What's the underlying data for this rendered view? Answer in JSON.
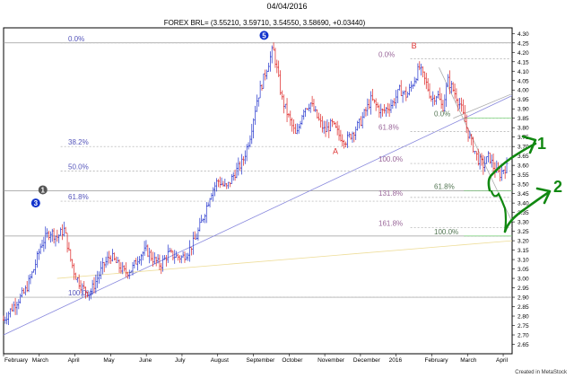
{
  "header": {
    "date": "04/04/2016",
    "ohlc": "FOREX BRL= (3.55210, 3.59710, 3.54550, 3.58690, +0.03440)"
  },
  "credit": "Created in MetaStock",
  "chart_data": {
    "type": "ohlc",
    "title": "FOREX BRL= (3.55210, 3.59710, 3.54550, 3.58690, +0.03440)",
    "ylim": [
      2.6,
      4.33
    ],
    "y_ticks": [
      "4.30",
      "4.25",
      "4.20",
      "4.15",
      "4.10",
      "4.05",
      "4.00",
      "3.95",
      "3.90",
      "3.85",
      "3.80",
      "3.75",
      "3.70",
      "3.65",
      "3.60",
      "3.55",
      "3.50",
      "3.45",
      "3.40",
      "3.35",
      "3.30",
      "3.25",
      "3.20",
      "3.15",
      "3.10",
      "3.05",
      "3.00",
      "2.95",
      "2.90",
      "2.85",
      "2.80",
      "2.75",
      "2.70",
      "2.65"
    ],
    "months": [
      {
        "label": "February",
        "t": 0
      },
      {
        "label": "March",
        "t": 1
      },
      {
        "label": "April",
        "t": 2
      },
      {
        "label": "May",
        "t": 3
      },
      {
        "label": "June",
        "t": 4
      },
      {
        "label": "July",
        "t": 5
      },
      {
        "label": "August",
        "t": 6
      },
      {
        "label": "September",
        "t": 7
      },
      {
        "label": "October",
        "t": 8
      },
      {
        "label": "November",
        "t": 9
      },
      {
        "label": "December",
        "t": 10
      },
      {
        "label": "2016",
        "t": 11
      },
      {
        "label": "February",
        "t": 12
      },
      {
        "label": "March",
        "t": 13
      },
      {
        "label": "April",
        "t": 14
      }
    ],
    "t_range": [
      0,
      14.25
    ],
    "price_path": [
      [
        0.0,
        2.78
      ],
      [
        0.3,
        2.86
      ],
      [
        0.6,
        2.93
      ],
      [
        0.85,
        3.05
      ],
      [
        1.05,
        3.18
      ],
      [
        1.3,
        3.25
      ],
      [
        1.5,
        3.22
      ],
      [
        1.7,
        3.26
      ],
      [
        1.85,
        3.12
      ],
      [
        2.0,
        3.02
      ],
      [
        2.2,
        2.95
      ],
      [
        2.4,
        2.92
      ],
      [
        2.55,
        2.97
      ],
      [
        2.8,
        3.07
      ],
      [
        3.0,
        3.12
      ],
      [
        3.2,
        3.07
      ],
      [
        3.4,
        3.03
      ],
      [
        3.6,
        3.05
      ],
      [
        3.8,
        3.12
      ],
      [
        4.0,
        3.15
      ],
      [
        4.2,
        3.1
      ],
      [
        4.4,
        3.07
      ],
      [
        4.6,
        3.13
      ],
      [
        4.8,
        3.12
      ],
      [
        5.0,
        3.11
      ],
      [
        5.2,
        3.15
      ],
      [
        5.4,
        3.22
      ],
      [
        5.6,
        3.33
      ],
      [
        5.8,
        3.45
      ],
      [
        6.0,
        3.52
      ],
      [
        6.25,
        3.48
      ],
      [
        6.45,
        3.55
      ],
      [
        6.7,
        3.62
      ],
      [
        6.9,
        3.75
      ],
      [
        7.1,
        3.95
      ],
      [
        7.35,
        4.1
      ],
      [
        7.55,
        4.22
      ],
      [
        7.65,
        4.12
      ],
      [
        7.8,
        3.95
      ],
      [
        8.0,
        3.85
      ],
      [
        8.2,
        3.75
      ],
      [
        8.4,
        3.9
      ],
      [
        8.6,
        3.93
      ],
      [
        8.8,
        3.85
      ],
      [
        9.0,
        3.78
      ],
      [
        9.2,
        3.82
      ],
      [
        9.4,
        3.76
      ],
      [
        9.6,
        3.73
      ],
      [
        9.8,
        3.78
      ],
      [
        10.0,
        3.83
      ],
      [
        10.3,
        3.95
      ],
      [
        10.6,
        3.88
      ],
      [
        10.9,
        3.93
      ],
      [
        11.1,
        4.0
      ],
      [
        11.3,
        3.97
      ],
      [
        11.5,
        4.05
      ],
      [
        11.65,
        4.12
      ],
      [
        11.85,
        4.03
      ],
      [
        12.0,
        3.95
      ],
      [
        12.15,
        3.98
      ],
      [
        12.3,
        3.9
      ],
      [
        12.45,
        4.05
      ],
      [
        12.6,
        4.0
      ],
      [
        12.8,
        3.92
      ],
      [
        12.9,
        3.85
      ],
      [
        13.0,
        3.78
      ],
      [
        13.15,
        3.7
      ],
      [
        13.3,
        3.63
      ],
      [
        13.45,
        3.6
      ],
      [
        13.6,
        3.65
      ],
      [
        13.75,
        3.58
      ],
      [
        13.9,
        3.55
      ],
      [
        14.0,
        3.58
      ],
      [
        14.1,
        3.59
      ]
    ],
    "trendlines": [
      {
        "from": [
          0.0,
          2.7
        ],
        "to": [
          14.25,
          3.97
        ],
        "color": "#8888dd"
      },
      {
        "from": [
          12.2,
          4.12
        ],
        "to": [
          14.25,
          3.3
        ],
        "color": "#aaaaaa"
      },
      {
        "from": [
          12.6,
          3.85
        ],
        "to": [
          14.25,
          3.98
        ],
        "color": "#aaaaaa"
      },
      {
        "from": [
          1.5,
          3.0
        ],
        "to": [
          14.25,
          3.2
        ],
        "color": "#eedd99"
      }
    ],
    "fib_long": [
      {
        "label": "0.0%",
        "price": 4.25,
        "color": "#5555bb"
      },
      {
        "label": "38.2%",
        "price": 3.7,
        "color": "#5555bb"
      },
      {
        "label": "50.0%",
        "price": 3.57,
        "color": "#5555bb"
      },
      {
        "label": "61.8%",
        "price": 3.41,
        "color": "#5555bb"
      },
      {
        "label": "100.0%",
        "price": 2.9,
        "color": "#5555bb"
      }
    ],
    "fib_recent": [
      {
        "label": "0.0%",
        "price": 4.165,
        "color": "#996699"
      },
      {
        "label": "61.8%",
        "price": 3.78,
        "color": "#996699"
      },
      {
        "label": "100.0%",
        "price": 3.61,
        "color": "#996699"
      },
      {
        "label": "131.8%",
        "price": 3.43,
        "color": "#996699"
      },
      {
        "label": "161.8%",
        "price": 3.27,
        "color": "#996699"
      }
    ],
    "fib_short": [
      {
        "label": "0.0%",
        "price": 3.85,
        "color": "#557755"
      },
      {
        "label": "61.8%",
        "price": 3.465,
        "color": "#557755"
      },
      {
        "label": "100.0%",
        "price": 3.225,
        "color": "#557755"
      }
    ],
    "wave_labels": [
      {
        "text": "5",
        "t": 7.3,
        "price": 4.29,
        "style": "circle-blue"
      },
      {
        "text": "3",
        "t": 0.9,
        "price": 3.4,
        "style": "circle-blue"
      },
      {
        "text": "1",
        "t": 1.1,
        "price": 3.47,
        "style": "circle-grey"
      },
      {
        "text": "A",
        "t": 9.3,
        "price": 3.66,
        "style": "letter-red"
      },
      {
        "text": "B",
        "t": 11.5,
        "price": 4.22,
        "style": "letter-red"
      }
    ],
    "handwritten": [
      "1",
      "2"
    ]
  }
}
